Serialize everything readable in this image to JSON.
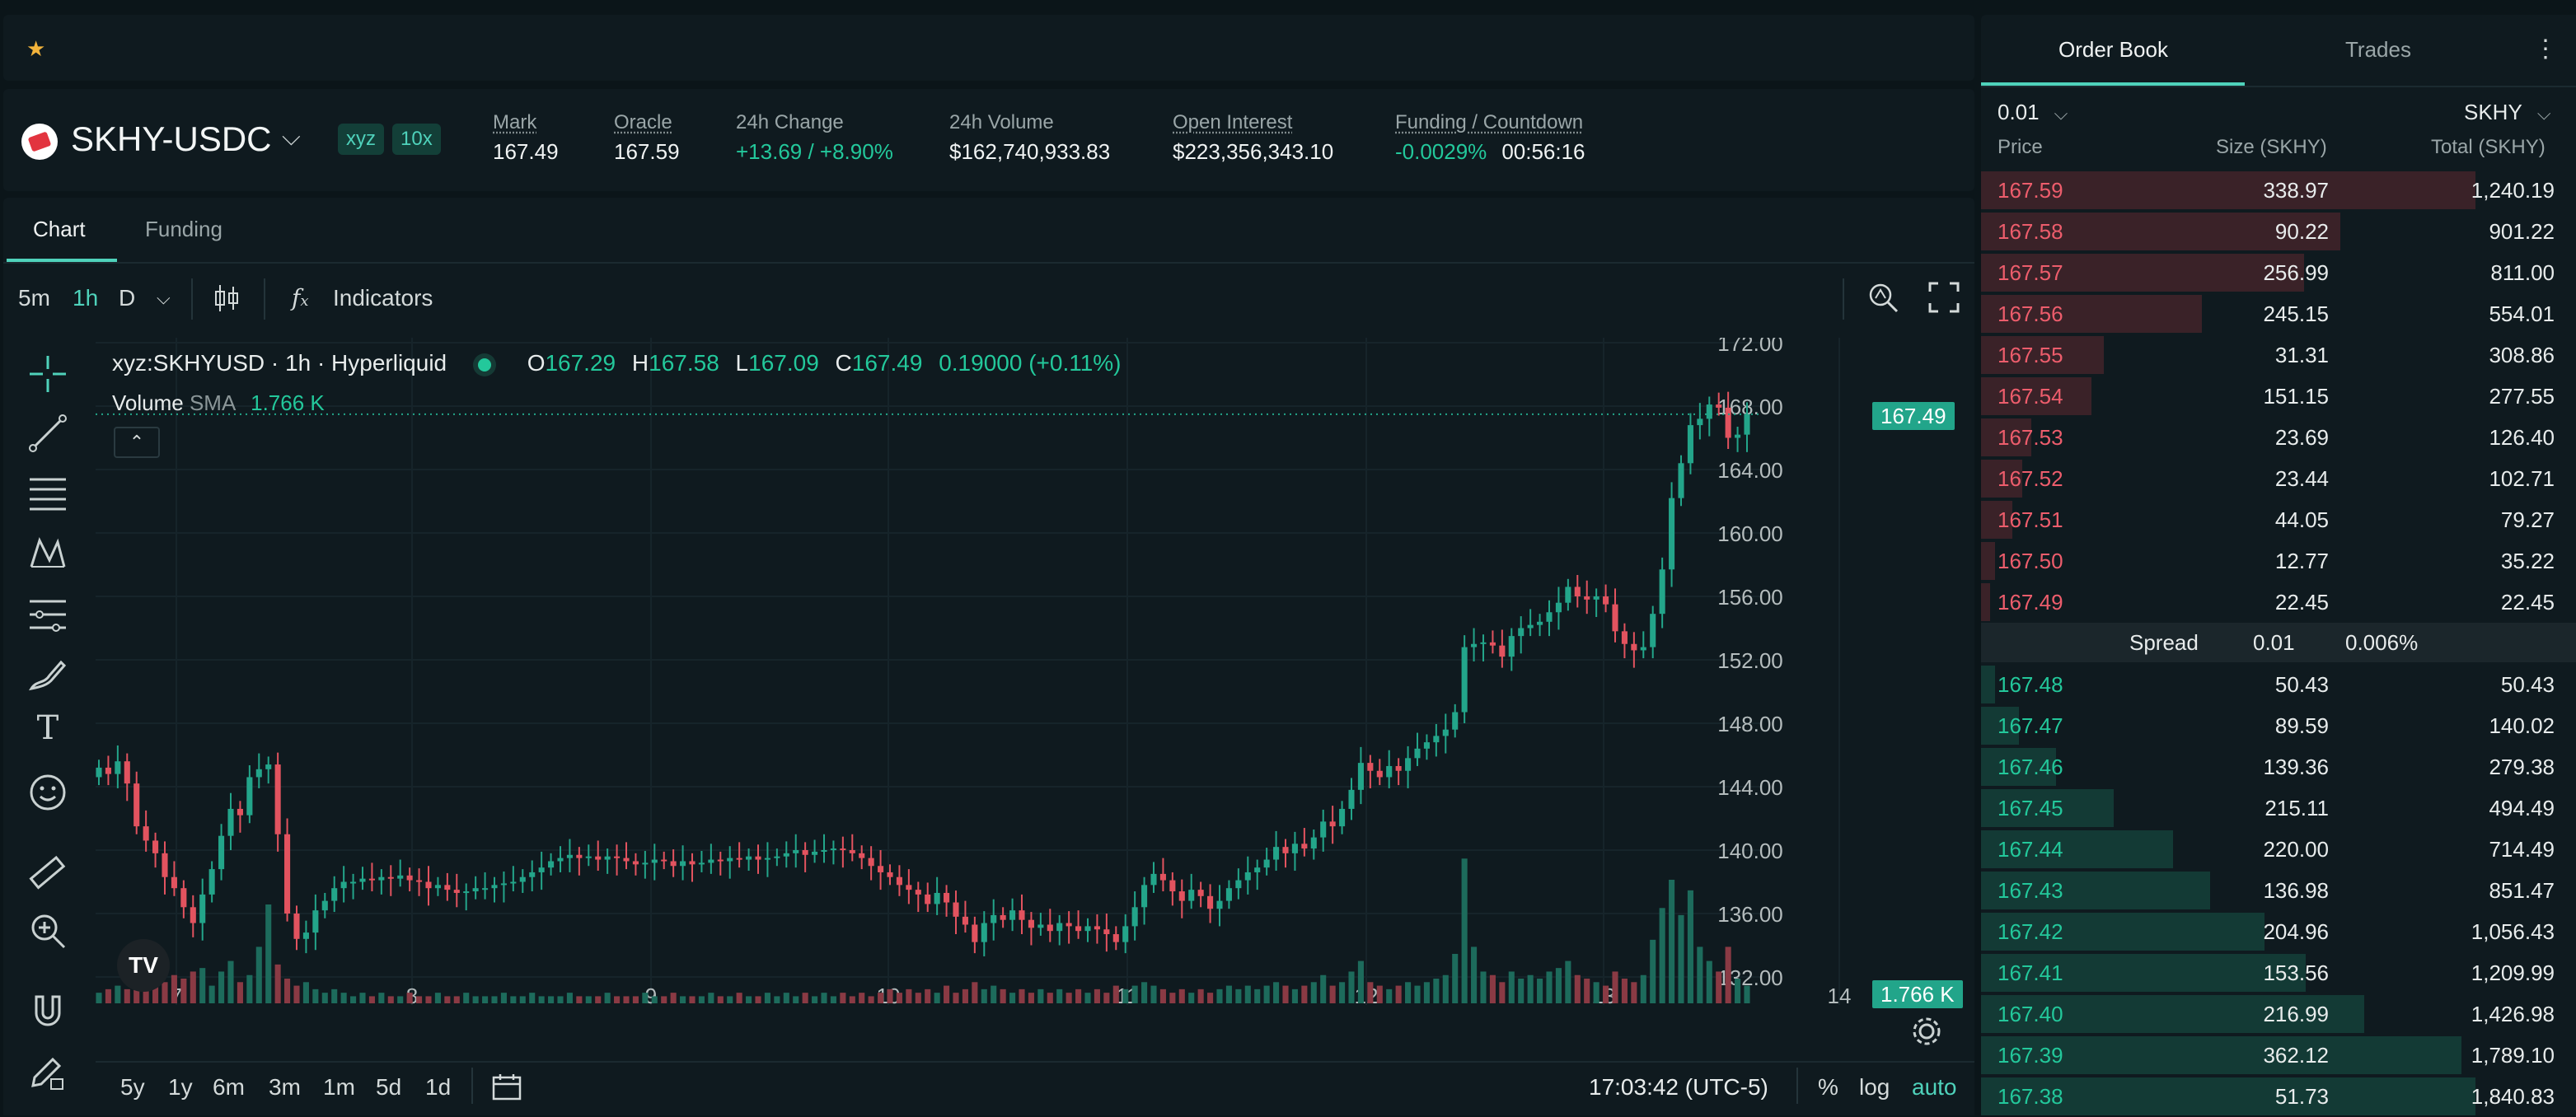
{
  "header": {
    "pair": "SKHY-USDC",
    "tags": [
      "xyz",
      "10x"
    ],
    "stats": [
      {
        "label": "Mark",
        "value": "167.49"
      },
      {
        "label": "Oracle",
        "value": "167.59"
      },
      {
        "label": "24h Change",
        "value": "+13.69 / +8.90%"
      },
      {
        "label": "24h Volume",
        "value": "$162,740,933.83"
      },
      {
        "label": "Open Interest",
        "value": "$223,356,343.10"
      },
      {
        "label": "Funding / Countdown",
        "value": "-0.0029%",
        "value2": "00:56:16"
      }
    ]
  },
  "tabs": [
    "Chart",
    "Funding"
  ],
  "toolbar": {
    "intervals": [
      "5m",
      "1h",
      "D"
    ],
    "active_interval": "1h",
    "indicators_label": "Indicators"
  },
  "legend": {
    "symbol": "xyz:SKHYUSD · 1h · Hyperliquid",
    "o_key": "O",
    "o": "167.29",
    "h_key": "H",
    "h": "167.58",
    "l_key": "L",
    "l": "167.09",
    "c_key": "C",
    "c": "167.49",
    "change": "0.19000 (+0.11%)",
    "volume_label": "Volume",
    "sma_label": "SMA",
    "sma_value": "1.766 K"
  },
  "chart_data": {
    "type": "candlestick",
    "x_labels": [
      "7",
      "8",
      "9",
      "10",
      "11",
      "12",
      "13",
      "14"
    ],
    "y_ticks": [
      "172.00",
      "168.00",
      "164.00",
      "160.00",
      "156.00",
      "152.00",
      "148.00",
      "144.00",
      "140.00",
      "136.00",
      "132.00"
    ],
    "ylim": [
      132,
      172
    ],
    "last_price": "167.49",
    "volume_last": "1.766 K",
    "colors": {
      "up": "#23a58a",
      "down": "#e2535f",
      "up_vol": "#1d6b5c",
      "down_vol": "#8a3a44"
    },
    "close_series": [
      145.2,
      144.8,
      145.6,
      144.2,
      141.5,
      140.6,
      139.8,
      138.3,
      137.6,
      136.4,
      135.4,
      137.2,
      138.8,
      140.9,
      142.6,
      142.2,
      144.6,
      145.1,
      145.4,
      141.0,
      136.0,
      134.4,
      134.8,
      136.2,
      136.8,
      137.6,
      138.0,
      138.0,
      138.2,
      138.1,
      138.3,
      138.2,
      138.4,
      138.1,
      138.0,
      137.6,
      137.8,
      137.5,
      137.3,
      137.4,
      137.6,
      137.6,
      137.8,
      137.9,
      138.0,
      138.3,
      138.6,
      138.9,
      139.3,
      139.5,
      139.7,
      139.5,
      139.6,
      139.4,
      139.6,
      139.5,
      139.3,
      139.1,
      139.2,
      139.4,
      139.3,
      139.0,
      139.3,
      139.1,
      139.2,
      139.4,
      139.3,
      139.5,
      139.4,
      139.6,
      139.4,
      139.5,
      139.6,
      139.8,
      140.0,
      139.7,
      139.9,
      140.0,
      140.1,
      140.0,
      139.8,
      139.5,
      139.0,
      138.6,
      138.3,
      137.8,
      137.5,
      137.2,
      136.6,
      137.3,
      136.7,
      135.8,
      135.3,
      134.2,
      135.4,
      135.9,
      135.6,
      136.2,
      135.6,
      135.1,
      135.3,
      134.9,
      135.4,
      135.2,
      134.9,
      135.2,
      135.0,
      134.7,
      134.2,
      135.2,
      136.4,
      137.8,
      138.5,
      138.1,
      137.4,
      136.8,
      137.5,
      137.1,
      136.3,
      136.8,
      137.6,
      138.1,
      138.6,
      138.9,
      139.4,
      140.2,
      139.8,
      140.4,
      140.1,
      140.8,
      141.8,
      141.5,
      142.6,
      143.8,
      145.5,
      145.0,
      144.6,
      145.3,
      145.0,
      145.8,
      146.4,
      146.8,
      147.2,
      147.6,
      148.7,
      152.8,
      153.0,
      153.1,
      152.9,
      152.2,
      153.5,
      154.0,
      154.2,
      154.4,
      155.0,
      155.6,
      156.6,
      156.0,
      155.8,
      156.0,
      155.5,
      153.8,
      153.0,
      152.6,
      152.8,
      154.9,
      157.7,
      162.2,
      164.4,
      166.8,
      167.2,
      168.1,
      167.9,
      166.0,
      166.2,
      167.49
    ],
    "volume_series": [
      0.3,
      0.4,
      0.5,
      0.4,
      0.6,
      0.5,
      0.7,
      0.6,
      0.8,
      0.7,
      0.9,
      1.0,
      0.5,
      0.9,
      1.2,
      0.6,
      0.8,
      1.6,
      2.8,
      1.1,
      0.7,
      0.5,
      0.6,
      0.4,
      0.3,
      0.4,
      0.3,
      0.2,
      0.3,
      0.2,
      0.3,
      0.2,
      0.2,
      0.3,
      0.2,
      0.2,
      0.3,
      0.2,
      0.2,
      0.3,
      0.2,
      0.2,
      0.2,
      0.3,
      0.2,
      0.2,
      0.3,
      0.2,
      0.2,
      0.2,
      0.3,
      0.2,
      0.2,
      0.2,
      0.3,
      0.2,
      0.2,
      0.2,
      0.3,
      0.2,
      0.2,
      0.3,
      0.2,
      0.2,
      0.2,
      0.3,
      0.2,
      0.2,
      0.3,
      0.2,
      0.2,
      0.3,
      0.2,
      0.3,
      0.2,
      0.3,
      0.2,
      0.3,
      0.2,
      0.3,
      0.2,
      0.3,
      0.2,
      0.3,
      0.4,
      0.3,
      0.4,
      0.3,
      0.4,
      0.3,
      0.5,
      0.3,
      0.4,
      0.6,
      0.4,
      0.5,
      0.4,
      0.3,
      0.4,
      0.3,
      0.4,
      0.3,
      0.4,
      0.3,
      0.4,
      0.3,
      0.4,
      0.3,
      0.5,
      0.4,
      0.5,
      0.6,
      0.5,
      0.4,
      0.3,
      0.4,
      0.3,
      0.4,
      0.3,
      0.4,
      0.5,
      0.4,
      0.5,
      0.4,
      0.5,
      0.6,
      0.5,
      0.4,
      0.5,
      0.6,
      0.8,
      0.5,
      0.6,
      0.9,
      1.2,
      0.6,
      0.5,
      0.4,
      0.5,
      0.6,
      0.5,
      0.6,
      0.7,
      0.8,
      1.4,
      4.1,
      1.6,
      0.9,
      0.8,
      0.6,
      0.9,
      0.7,
      0.8,
      0.7,
      0.9,
      1.0,
      1.2,
      0.8,
      0.7,
      0.6,
      0.5,
      0.9,
      0.7,
      0.6,
      0.8,
      1.8,
      2.7,
      3.5,
      2.5,
      3.2,
      1.6,
      1.2,
      0.9,
      1.6,
      0.7,
      0.5
    ]
  },
  "range_buttons": [
    "5y",
    "1y",
    "6m",
    "3m",
    "1m",
    "5d",
    "1d"
  ],
  "footer": {
    "time": "17:03:42 (UTC-5)",
    "percent": "%",
    "log": "log",
    "auto": "auto"
  },
  "orderbook": {
    "tabs": [
      "Order Book",
      "Trades"
    ],
    "tick_size": "0.01",
    "unit": "SKHY",
    "columns": [
      "Price",
      "Size (SKHY)",
      "Total (SKHY)"
    ],
    "asks": [
      {
        "price": "167.59",
        "size": "338.97",
        "total": "1,240.19",
        "depth": 1.0
      },
      {
        "price": "167.58",
        "size": "90.22",
        "total": "901.22",
        "depth": 0.727
      },
      {
        "price": "167.57",
        "size": "256.99",
        "total": "811.00",
        "depth": 0.654
      },
      {
        "price": "167.56",
        "size": "245.15",
        "total": "554.01",
        "depth": 0.447
      },
      {
        "price": "167.55",
        "size": "31.31",
        "total": "308.86",
        "depth": 0.249
      },
      {
        "price": "167.54",
        "size": "151.15",
        "total": "277.55",
        "depth": 0.224
      },
      {
        "price": "167.53",
        "size": "23.69",
        "total": "126.40",
        "depth": 0.102
      },
      {
        "price": "167.52",
        "size": "23.44",
        "total": "102.71",
        "depth": 0.083
      },
      {
        "price": "167.51",
        "size": "44.05",
        "total": "79.27",
        "depth": 0.064
      },
      {
        "price": "167.50",
        "size": "12.77",
        "total": "35.22",
        "depth": 0.028
      },
      {
        "price": "167.49",
        "size": "22.45",
        "total": "22.45",
        "depth": 0.018
      }
    ],
    "spread_label": "Spread",
    "spread_value": "0.01",
    "spread_pct": "0.006%",
    "bids": [
      {
        "price": "167.48",
        "size": "50.43",
        "total": "50.43",
        "depth": 0.028
      },
      {
        "price": "167.47",
        "size": "89.59",
        "total": "140.02",
        "depth": 0.076
      },
      {
        "price": "167.46",
        "size": "139.36",
        "total": "279.38",
        "depth": 0.152
      },
      {
        "price": "167.45",
        "size": "215.11",
        "total": "494.49",
        "depth": 0.269
      },
      {
        "price": "167.44",
        "size": "220.00",
        "total": "714.49",
        "depth": 0.388
      },
      {
        "price": "167.43",
        "size": "136.98",
        "total": "851.47",
        "depth": 0.463
      },
      {
        "price": "167.42",
        "size": "204.96",
        "total": "1,056.43",
        "depth": 0.574
      },
      {
        "price": "167.41",
        "size": "153.56",
        "total": "1,209.99",
        "depth": 0.657
      },
      {
        "price": "167.40",
        "size": "216.99",
        "total": "1,426.98",
        "depth": 0.775
      },
      {
        "price": "167.39",
        "size": "362.12",
        "total": "1,789.10",
        "depth": 0.972
      },
      {
        "price": "167.38",
        "size": "51.73",
        "total": "1,840.83",
        "depth": 1.0
      }
    ]
  },
  "icons": {
    "favorite": "star-icon",
    "tools": [
      "crosshair-icon",
      "trend-line-icon",
      "fib-lines-icon",
      "pattern-icon",
      "measure-lines-icon",
      "brush-icon",
      "text-icon",
      "emoji-icon",
      "ruler-icon",
      "zoom-in-icon",
      "magnet-icon",
      "lock-draw-icon"
    ]
  }
}
